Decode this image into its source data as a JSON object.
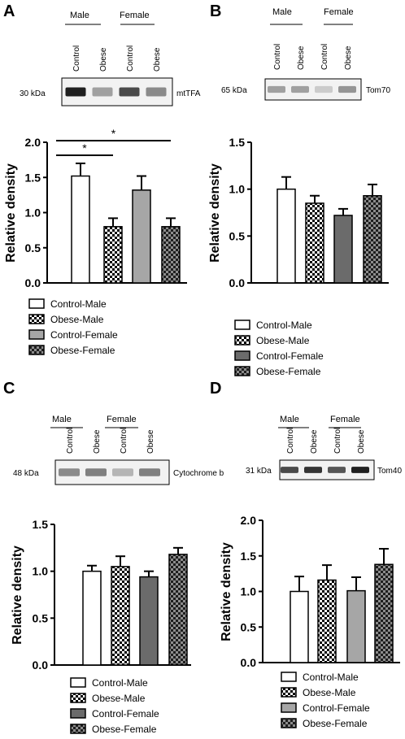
{
  "colors": {
    "control_male": "#ffffff",
    "control_female_gray": "#a6a6a6",
    "control_female_dark": "#6b6b6b",
    "band_dark": "#1a1a1a",
    "axis": "#000000"
  },
  "legend": [
    "Control-Male",
    "Obese-Male",
    "Control-Female",
    "Obese-Female"
  ],
  "chart_data": [
    {
      "panel": "A",
      "type": "bar",
      "blot": {
        "sex_labels": [
          "Male",
          "Female"
        ],
        "lane_labels": [
          "Control",
          "Obese",
          "Control",
          "Obese"
        ],
        "kda": "30 kDa",
        "protein": "mtTFA",
        "intensities": [
          0.95,
          0.35,
          0.75,
          0.45
        ]
      },
      "categories": [
        "Control-Male",
        "Obese-Male",
        "Control-Female",
        "Obese-Female"
      ],
      "values": [
        1.52,
        0.8,
        1.32,
        0.8
      ],
      "errors": [
        0.18,
        0.12,
        0.2,
        0.12
      ],
      "ylabel": "Relative density",
      "ylim": [
        0,
        2.0
      ],
      "yticks": [
        "0.0",
        "0.5",
        "1.0",
        "1.5",
        "2.0"
      ],
      "significance": [
        {
          "from": 0,
          "to": 1,
          "label": "*"
        },
        {
          "from": 0,
          "to": 3,
          "label": "*"
        }
      ],
      "control_female_shade": "gray"
    },
    {
      "panel": "B",
      "type": "bar",
      "blot": {
        "sex_labels": [
          "Male",
          "Female"
        ],
        "lane_labels": [
          "Control",
          "Obese",
          "Control",
          "Obese"
        ],
        "kda": "65 kDa",
        "protein": "Tom70",
        "intensities": [
          0.35,
          0.35,
          0.15,
          0.4
        ]
      },
      "categories": [
        "Control-Male",
        "Obese-Male",
        "Control-Female",
        "Obese-Female"
      ],
      "values": [
        1.0,
        0.85,
        0.72,
        0.93
      ],
      "errors": [
        0.13,
        0.08,
        0.07,
        0.12
      ],
      "ylabel": "Relative density",
      "ylim": [
        0,
        1.5
      ],
      "yticks": [
        "0.0",
        "0.5",
        "1.0",
        "1.5"
      ],
      "significance": [],
      "control_female_shade": "dark"
    },
    {
      "panel": "C",
      "type": "bar",
      "blot": {
        "sex_labels": [
          "Male",
          "Female"
        ],
        "lane_labels": [
          "Control",
          "Obese",
          "Control",
          "Obese"
        ],
        "kda": "48 kDa",
        "protein": "Cytochrome b",
        "intensities": [
          0.45,
          0.5,
          0.25,
          0.5
        ]
      },
      "categories": [
        "Control-Male",
        "Obese-Male",
        "Control-Female",
        "Obese-Female"
      ],
      "values": [
        1.0,
        1.05,
        0.94,
        1.18
      ],
      "errors": [
        0.06,
        0.11,
        0.06,
        0.07
      ],
      "ylabel": "Relative density",
      "ylim": [
        0,
        1.5
      ],
      "yticks": [
        "0.0",
        "0.5",
        "1.0",
        "1.5"
      ],
      "significance": [],
      "control_female_shade": "dark"
    },
    {
      "panel": "D",
      "type": "bar",
      "blot": {
        "sex_labels": [
          "Male",
          "Female"
        ],
        "lane_labels": [
          "Control",
          "Obese",
          "Control",
          "Obese"
        ],
        "kda": "31 kDa",
        "protein": "Tom40",
        "intensities": [
          0.75,
          0.85,
          0.7,
          0.95
        ]
      },
      "categories": [
        "Control-Male",
        "Obese-Male",
        "Control-Female",
        "Obese-Female"
      ],
      "values": [
        1.0,
        1.16,
        1.01,
        1.38
      ],
      "errors": [
        0.21,
        0.21,
        0.19,
        0.22
      ],
      "ylabel": "Relative density",
      "ylim": [
        0,
        2.0
      ],
      "yticks": [
        "0.0",
        "0.5",
        "1.0",
        "1.5",
        "2.0"
      ],
      "significance": [],
      "control_female_shade": "gray"
    }
  ]
}
